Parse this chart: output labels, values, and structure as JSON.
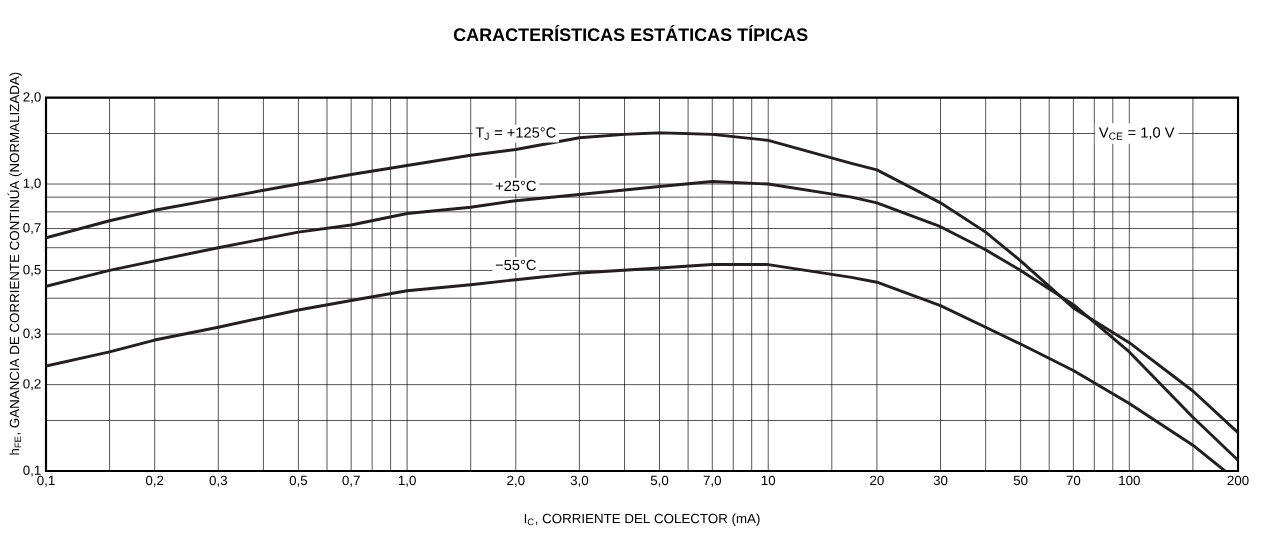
{
  "chart_data": {
    "type": "line",
    "title": "CARACTERÍSTICAS ESTÁTICAS TÍPICAS",
    "xlabel": "I$_{C}$, CORRIENTE DEL COLECTOR (mA)",
    "ylabel": "h$_{FE}$, GANANCIA DE CORRIENTE CONTINÚA (NORMALIZADA)",
    "annotations": [
      "V$_{CE}$ = 1,0 V"
    ],
    "log": "xy",
    "grid": true,
    "marker": "none",
    "line_style": "solid",
    "xlim": [
      0.1,
      200
    ],
    "ylim": [
      0.1,
      2.0
    ],
    "xticks": [
      {
        "value": 0.1,
        "label": "0,1"
      },
      {
        "value": 0.15,
        "label": null
      },
      {
        "value": 0.2,
        "label": "0,2"
      },
      {
        "value": 0.3,
        "label": "0,3"
      },
      {
        "value": 0.4,
        "label": null
      },
      {
        "value": 0.5,
        "label": "0,5"
      },
      {
        "value": 0.6,
        "label": null
      },
      {
        "value": 0.7,
        "label": "0,7"
      },
      {
        "value": 0.8,
        "label": null
      },
      {
        "value": 0.9,
        "label": null
      },
      {
        "value": 1.0,
        "label": "1,0"
      },
      {
        "value": 1.5,
        "label": null
      },
      {
        "value": 2.0,
        "label": "2,0"
      },
      {
        "value": 3.0,
        "label": "3,0"
      },
      {
        "value": 4.0,
        "label": null
      },
      {
        "value": 5.0,
        "label": "5,0"
      },
      {
        "value": 6.0,
        "label": null
      },
      {
        "value": 7.0,
        "label": "7,0"
      },
      {
        "value": 8.0,
        "label": null
      },
      {
        "value": 9.0,
        "label": null
      },
      10,
      {
        "value": 15,
        "label": null
      },
      20,
      30,
      {
        "value": 40,
        "label": null
      },
      50,
      {
        "value": 60,
        "label": null
      },
      70,
      {
        "value": 80,
        "label": null
      },
      {
        "value": 90,
        "label": null
      },
      100,
      {
        "value": 150,
        "label": null
      },
      200
    ],
    "yticks": [
      {
        "value": 0.1,
        "label": "0,1"
      },
      {
        "value": 0.15,
        "label": null
      },
      {
        "value": 0.2,
        "label": "0,2"
      },
      {
        "value": 0.3,
        "label": "0,3"
      },
      {
        "value": 0.4,
        "label": null
      },
      {
        "value": 0.5,
        "label": "0,5"
      },
      {
        "value": 0.6,
        "label": null
      },
      {
        "value": 0.7,
        "label": "0,7"
      },
      {
        "value": 0.8,
        "label": null
      },
      {
        "value": 0.9,
        "label": null
      },
      {
        "value": 1.0,
        "label": "1,0"
      },
      {
        "value": 1.5,
        "label": null
      },
      {
        "value": 2.0,
        "label": "2,0"
      }
    ],
    "series": [
      {
        "name": "T$_{J}$ = +125°C",
        "color": "#231f20",
        "x": [
          0.1,
          0.15,
          0.2,
          0.3,
          0.5,
          0.7,
          1,
          1.5,
          2,
          3,
          4,
          5,
          7,
          10,
          17,
          20,
          30,
          40,
          50,
          60,
          70,
          100,
          150,
          200
        ],
        "values": [
          0.65,
          0.745,
          0.81,
          0.89,
          1.0,
          1.08,
          1.16,
          1.26,
          1.32,
          1.45,
          1.49,
          1.51,
          1.49,
          1.42,
          1.18,
          1.12,
          0.86,
          0.68,
          0.54,
          0.44,
          0.37,
          0.28,
          0.19,
          0.136
        ]
      },
      {
        "name": "+25°C",
        "color": "#231f20",
        "x": [
          0.1,
          0.15,
          0.2,
          0.3,
          0.5,
          0.7,
          1,
          1.5,
          2,
          3,
          5,
          7,
          10,
          17,
          20,
          30,
          40,
          50,
          70,
          100,
          150,
          200
        ],
        "values": [
          0.44,
          0.5,
          0.54,
          0.6,
          0.68,
          0.72,
          0.79,
          0.83,
          0.875,
          0.92,
          0.98,
          1.02,
          1.0,
          0.9,
          0.86,
          0.71,
          0.59,
          0.5,
          0.38,
          0.26,
          0.154,
          0.109
        ]
      },
      {
        "name": "−55°C",
        "color": "#231f20",
        "x": [
          0.1,
          0.15,
          0.2,
          0.3,
          0.5,
          0.7,
          1,
          1.5,
          2,
          3,
          5,
          7,
          10,
          17,
          20,
          30,
          40,
          50,
          70,
          100,
          150,
          184
        ],
        "values": [
          0.232,
          0.26,
          0.286,
          0.317,
          0.364,
          0.393,
          0.425,
          0.446,
          0.464,
          0.49,
          0.51,
          0.524,
          0.524,
          0.473,
          0.455,
          0.377,
          0.317,
          0.277,
          0.224,
          0.172,
          0.123,
          0.1
        ]
      }
    ]
  }
}
